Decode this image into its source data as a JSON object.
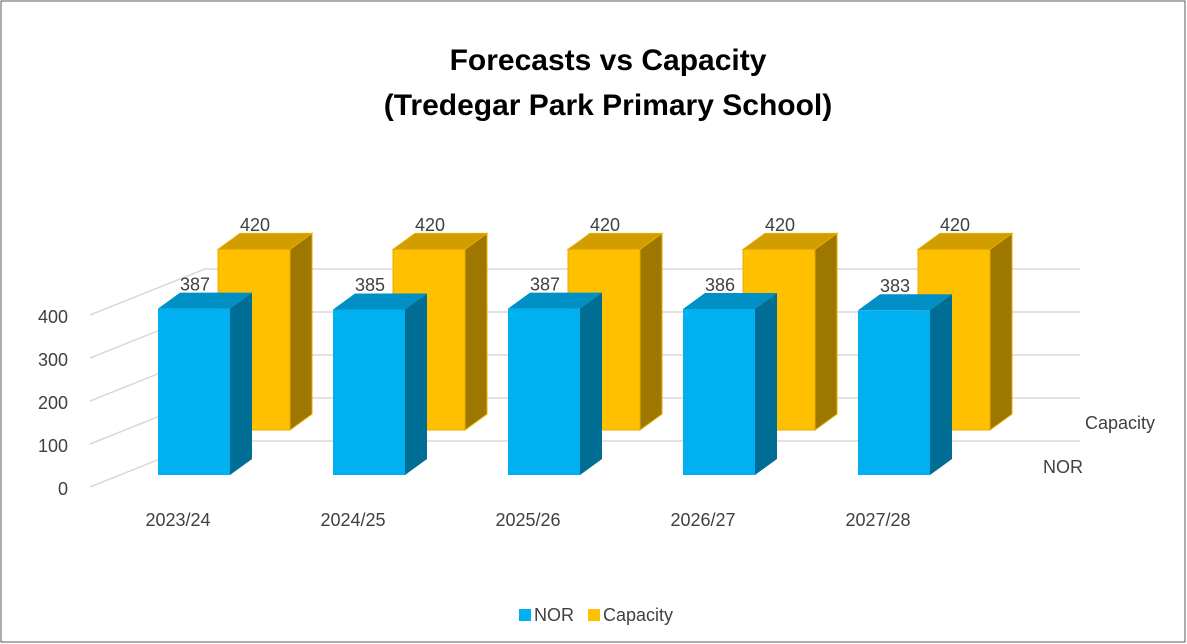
{
  "chart_data": {
    "type": "bar3d",
    "title": "Forecasts vs Capacity",
    "subtitle": "(Tredegar Park Primary School)",
    "categories": [
      "2023/24",
      "2024/25",
      "2025/26",
      "2026/27",
      "2027/28"
    ],
    "series": [
      {
        "name": "NOR",
        "color": "#00b0f0",
        "values": [
          387,
          385,
          387,
          386,
          383
        ]
      },
      {
        "name": "Capacity",
        "color": "#ffc000",
        "values": [
          420,
          420,
          420,
          420,
          420
        ]
      }
    ],
    "ylim": [
      0,
      500
    ],
    "yticks": [
      0,
      100,
      200,
      300,
      400
    ],
    "grid": true,
    "legend": "bottom"
  }
}
